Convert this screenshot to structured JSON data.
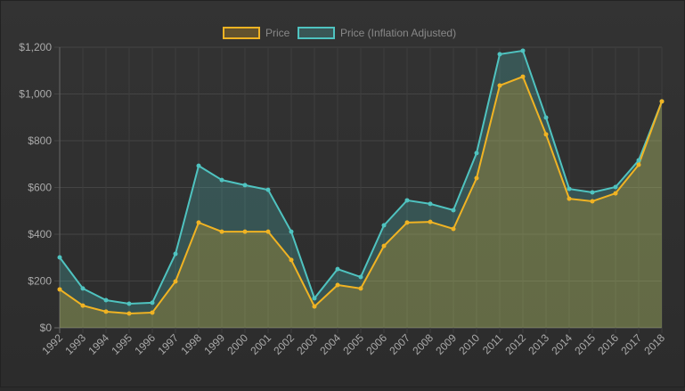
{
  "chart_data": {
    "type": "line",
    "title": "",
    "xlabel": "",
    "ylabel": "",
    "ylim": [
      0,
      1200
    ],
    "yticks": [
      "$0",
      "$200",
      "$400",
      "$600",
      "$800",
      "$1,000",
      "$1,200"
    ],
    "ytick_values": [
      0,
      200,
      400,
      600,
      800,
      1000,
      1200
    ],
    "grid": true,
    "legend_position": "top-center",
    "categories": [
      "1992",
      "1993",
      "1994",
      "1995",
      "1996",
      "1997",
      "1998",
      "1999",
      "2000",
      "2001",
      "2002",
      "2003",
      "2004",
      "2005",
      "2006",
      "2007",
      "2008",
      "2009",
      "2010",
      "2011",
      "2012",
      "2013",
      "2014",
      "2015",
      "2016",
      "2017",
      "2018"
    ],
    "series": [
      {
        "name": "Price",
        "color": "#f0b323",
        "fill": "rgba(240,179,35,0.25)",
        "values": [
          164,
          95,
          69,
          61,
          65,
          198,
          450,
          411,
          411,
          411,
          290,
          91,
          183,
          168,
          350,
          450,
          453,
          423,
          640,
          1036,
          1074,
          827,
          552,
          541,
          575,
          697,
          968
        ]
      },
      {
        "name": "Price (Inflation Adjusted)",
        "color": "#4fc3c0",
        "fill": "rgba(79,195,192,0.25)",
        "values": [
          301,
          168,
          118,
          103,
          107,
          316,
          693,
          632,
          610,
          590,
          411,
          126,
          251,
          217,
          438,
          545,
          530,
          503,
          747,
          1170,
          1185,
          899,
          594,
          579,
          602,
          716,
          968
        ]
      }
    ]
  }
}
